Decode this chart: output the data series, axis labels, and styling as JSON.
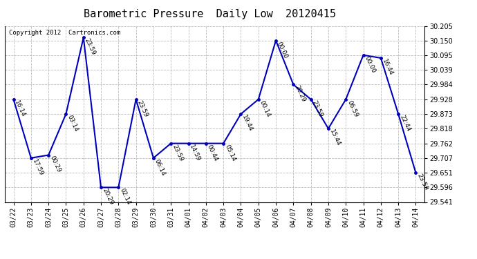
{
  "title": "Barometric Pressure  Daily Low  20120415",
  "copyright": "Copyright 2012  Cartronics.com",
  "x_labels": [
    "03/22",
    "03/23",
    "03/24",
    "03/25",
    "03/26",
    "03/27",
    "03/28",
    "03/29",
    "03/30",
    "03/31",
    "04/01",
    "04/02",
    "04/03",
    "04/04",
    "04/05",
    "04/06",
    "04/07",
    "04/08",
    "04/09",
    "04/10",
    "04/11",
    "04/12",
    "04/13",
    "04/14"
  ],
  "y_values": [
    29.928,
    29.707,
    29.718,
    29.873,
    30.161,
    29.596,
    29.596,
    29.928,
    29.707,
    29.762,
    29.762,
    29.762,
    29.762,
    29.873,
    29.928,
    30.15,
    29.984,
    29.928,
    29.818,
    29.928,
    30.095,
    30.084,
    29.873,
    29.651
  ],
  "point_labels": [
    "16:14",
    "17:59",
    "00:29",
    "03:14",
    "23:59",
    "20:29",
    "02:14",
    "23:59",
    "06:14",
    "23:59",
    "14:59",
    "00:44",
    "05:14",
    "19:44",
    "00:14",
    "00:00",
    "20:29",
    "23:59",
    "15:44",
    "06:59",
    "00:00",
    "16:44",
    "22:44",
    "23:59"
  ],
  "line_color": "#0000bb",
  "marker_color": "#0000bb",
  "background_color": "#ffffff",
  "plot_bg_color": "#ffffff",
  "grid_color": "#bbbbbb",
  "ylim_min": 29.541,
  "ylim_max": 30.205,
  "yticks": [
    29.541,
    29.596,
    29.651,
    29.707,
    29.762,
    29.818,
    29.873,
    29.928,
    29.984,
    30.039,
    30.095,
    30.15,
    30.205
  ],
  "title_fontsize": 11,
  "label_fontsize": 6.5,
  "tick_fontsize": 7,
  "copyright_fontsize": 6.5
}
